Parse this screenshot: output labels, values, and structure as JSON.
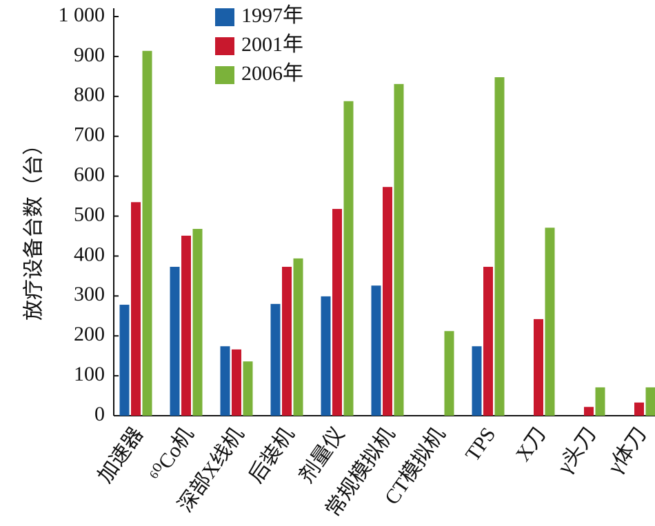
{
  "chart_data": {
    "type": "bar",
    "y_label": "放疗设备台数（台）",
    "categories": [
      "加速器",
      "⁶⁰Co机",
      "深部X线机",
      "后装机",
      "剂量仪",
      "常规模拟机",
      "CT模拟机",
      "TPS",
      "X刀",
      "γ头刀",
      "γ体刀"
    ],
    "series": [
      {
        "name": "1997年",
        "color": "#1a5fa8",
        "values": [
          278,
          373,
          174,
          280,
          299,
          326,
          null,
          174,
          null,
          null,
          null
        ]
      },
      {
        "name": "2001年",
        "color": "#c8182d",
        "values": [
          535,
          451,
          166,
          373,
          518,
          573,
          null,
          373,
          242,
          22,
          33
        ]
      },
      {
        "name": "2006年",
        "color": "#7bb23a",
        "values": [
          914,
          468,
          136,
          394,
          788,
          831,
          212,
          848,
          471,
          71,
          71
        ]
      }
    ],
    "ylim": [
      0,
      1000
    ],
    "yticks": [
      0,
      100,
      200,
      300,
      400,
      500,
      600,
      700,
      800,
      900,
      {
        "value": 1000,
        "label": "1 000"
      }
    ]
  }
}
